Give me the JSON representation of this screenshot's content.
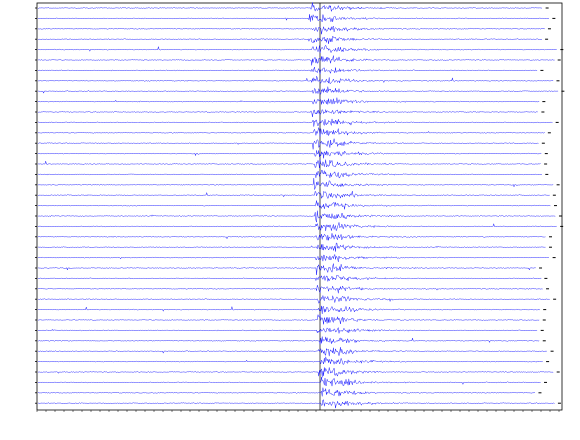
{
  "chart_data": {
    "type": "record-section",
    "color": "#1a1aff",
    "frame_color": "#000000"
  }
}
